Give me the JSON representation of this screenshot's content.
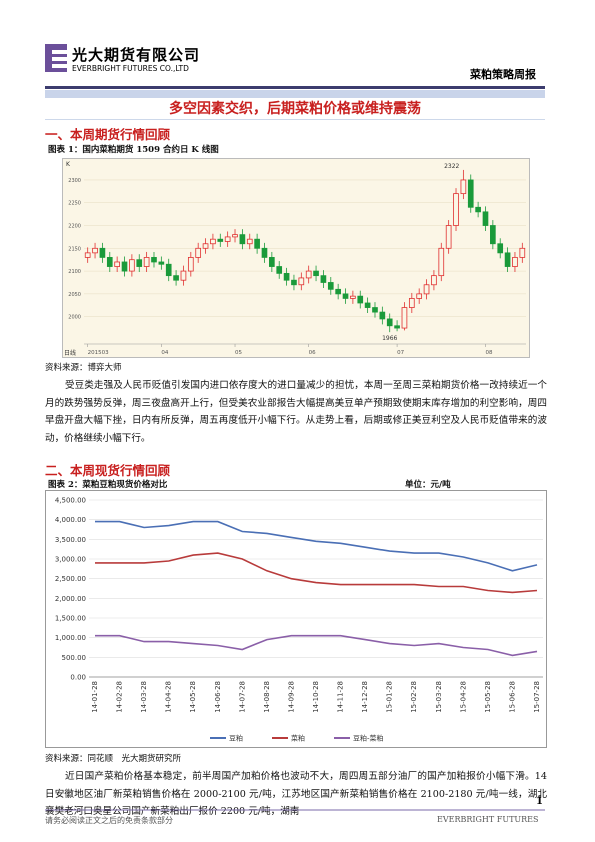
{
  "header": {
    "company": "光大期货有限公司",
    "company_en": "EVERBRIGHT FUTURES CO.,LTD",
    "report": "菜粕策略周报"
  },
  "title": "多空因素交织，后期菜粕价格或维持震荡",
  "sections": [
    {
      "heading": "一、本周期货行情回顾",
      "paragraph": "受豆类走强及人民币贬值引发国内进口依存度大的进口量减少的担忧，本周一至周三菜粕期货价格一改持续近一个月的跌势强势反弹，周三夜盘高开上行，但受美农业部报告大幅提高美豆单产预期致使期末库存增加的利空影响，周四早盘开盘大幅下挫，日内有所反弹，周五再度低开小幅下行。从走势上看，后期或修正美豆利空及人民币贬值带来的波动，价格继续小幅下行。"
    },
    {
      "heading": "二、本周现货行情回顾",
      "paragraph": "近日国产菜粕价格基本稳定，前半周国产加粕价格也波动不大，周四周五部分油厂的国产加粕报价小幅下滑。14 日安徽地区油厂新菜粕销售价格在 2000-2100 元/吨，江苏地区国产新菜粕销售价格在 2100-2180 元/吨一线，湖北襄樊老河口奥星公司国产新菜粕出厂报价 2200 元/吨，湖南"
    }
  ],
  "footer": {
    "page": "1",
    "disclaimer": "请务必阅读正文之后的免责条款部分",
    "brand": "EVERBRIGHT FUTURES"
  },
  "chart_data": [
    {
      "type": "candlestick",
      "title": "图表 1：国内菜粕期货 1509 合约日 K 线图",
      "source": "资料来源：博弈大师",
      "y_label": "K",
      "x_label": "日线",
      "annotations": [
        "2322",
        "1966"
      ],
      "up_color": "#e03030",
      "down_color": "#1a9a3a",
      "categories": [
        "201503",
        null,
        null,
        null,
        null,
        null,
        null,
        null,
        null,
        null,
        "04",
        null,
        null,
        null,
        null,
        null,
        null,
        null,
        null,
        null,
        "05",
        null,
        null,
        null,
        null,
        null,
        null,
        null,
        null,
        null,
        "06",
        null,
        null,
        null,
        null,
        null,
        null,
        null,
        null,
        null,
        null,
        null,
        "07",
        null,
        null,
        null,
        null,
        null,
        null,
        null,
        null,
        null,
        null,
        null,
        "08",
        null,
        null,
        null,
        null,
        null
      ],
      "open": [
        2130,
        2140,
        2150,
        2130,
        2110,
        2120,
        2100,
        2125,
        2110,
        2130,
        2120,
        2115,
        2090,
        2080,
        2100,
        2130,
        2150,
        2160,
        2170,
        2165,
        2175,
        2180,
        2160,
        2170,
        2150,
        2130,
        2110,
        2095,
        2080,
        2070,
        2085,
        2100,
        2090,
        2075,
        2060,
        2050,
        2040,
        2045,
        2030,
        2020,
        2010,
        1995,
        1980,
        1975,
        2020,
        2040,
        2050,
        2070,
        2090,
        2150,
        2200,
        2270,
        2300,
        2240,
        2230,
        2200,
        2160,
        2140,
        2110,
        2130
      ],
      "high": [
        2152,
        2162,
        2162,
        2142,
        2132,
        2132,
        2137,
        2137,
        2142,
        2142,
        2132,
        2127,
        2102,
        2112,
        2142,
        2162,
        2172,
        2182,
        2182,
        2187,
        2192,
        2192,
        2182,
        2182,
        2162,
        2142,
        2122,
        2107,
        2092,
        2097,
        2112,
        2112,
        2102,
        2087,
        2072,
        2062,
        2057,
        2057,
        2042,
        2032,
        2022,
        2007,
        1992,
        2032,
        2052,
        2062,
        2082,
        2102,
        2162,
        2212,
        2282,
        2322,
        2312,
        2252,
        2242,
        2212,
        2172,
        2152,
        2142,
        2162
      ],
      "low": [
        2118,
        2128,
        2118,
        2098,
        2098,
        2088,
        2088,
        2098,
        2098,
        2108,
        2103,
        2078,
        2068,
        2068,
        2088,
        2118,
        2138,
        2148,
        2153,
        2153,
        2163,
        2148,
        2148,
        2138,
        2118,
        2098,
        2083,
        2068,
        2058,
        2058,
        2073,
        2078,
        2063,
        2048,
        2038,
        2028,
        2028,
        2018,
        2008,
        1998,
        1983,
        1966,
        1968,
        1970,
        2008,
        2028,
        2038,
        2058,
        2078,
        2138,
        2188,
        2258,
        2228,
        2218,
        2188,
        2148,
        2128,
        2098,
        2098,
        2118
      ],
      "close": [
        2140,
        2150,
        2130,
        2110,
        2120,
        2100,
        2125,
        2110,
        2130,
        2120,
        2115,
        2090,
        2080,
        2100,
        2130,
        2150,
        2160,
        2170,
        2165,
        2175,
        2180,
        2160,
        2170,
        2150,
        2130,
        2110,
        2095,
        2080,
        2070,
        2085,
        2100,
        2090,
        2075,
        2060,
        2050,
        2040,
        2045,
        2030,
        2020,
        2010,
        1995,
        1980,
        1975,
        2020,
        2040,
        2050,
        2070,
        2090,
        2150,
        2200,
        2270,
        2300,
        2240,
        2230,
        2200,
        2160,
        2140,
        2110,
        2130,
        2150
      ],
      "ylim": [
        1940,
        2335
      ],
      "yticks": [
        2000,
        2050,
        2100,
        2150,
        2200,
        2250,
        2300
      ],
      "grid": true
    },
    {
      "type": "line",
      "title": "图表 2：菜粕豆粕现货价格对比",
      "unit": "单位：元/吨",
      "source": "资料来源：同花顺　光大期货研究所",
      "categories": [
        "14-01-28",
        "14-02-28",
        "14-03-28",
        "14-04-28",
        "14-05-28",
        "14-06-28",
        "14-07-28",
        "14-08-28",
        "14-09-28",
        "14-10-28",
        "14-11-28",
        "14-12-28",
        "15-01-28",
        "15-02-28",
        "15-03-28",
        "15-04-28",
        "15-05-28",
        "15-06-28",
        "15-07-28"
      ],
      "series": [
        {
          "name": "豆粕",
          "color": "#4a6fb5",
          "values": [
            3950,
            3950,
            3800,
            3850,
            3950,
            3950,
            3700,
            3650,
            3550,
            3450,
            3400,
            3300,
            3200,
            3150,
            3150,
            3050,
            2900,
            2700,
            2850
          ]
        },
        {
          "name": "菜粕",
          "color": "#b83b3b",
          "values": [
            2900,
            2900,
            2900,
            2950,
            3100,
            3150,
            3000,
            2700,
            2500,
            2400,
            2350,
            2350,
            2350,
            2350,
            2300,
            2300,
            2200,
            2150,
            2200
          ]
        },
        {
          "name": "豆粕-菜粕",
          "color": "#8a5fa8",
          "values": [
            1050,
            1050,
            900,
            900,
            850,
            800,
            700,
            950,
            1050,
            1050,
            1050,
            950,
            850,
            800,
            850,
            750,
            700,
            550,
            650
          ]
        }
      ],
      "ylim": [
        0,
        4500
      ],
      "yticks": [
        {
          "value": 0,
          "label": "0.00"
        },
        {
          "value": 500,
          "label": "500.00"
        },
        {
          "value": 1000,
          "label": "1,000.00"
        },
        {
          "value": 1500,
          "label": "1,500.00"
        },
        {
          "value": 2000,
          "label": "2,000.00"
        },
        {
          "value": 2500,
          "label": "2,500.00"
        },
        {
          "value": 3000,
          "label": "3,000.00"
        },
        {
          "value": 3500,
          "label": "3,500.00"
        },
        {
          "value": 4000,
          "label": "4,000.00"
        },
        {
          "value": 4500,
          "label": "4,500.00"
        }
      ],
      "grid": true,
      "legend": "bottom"
    }
  ]
}
